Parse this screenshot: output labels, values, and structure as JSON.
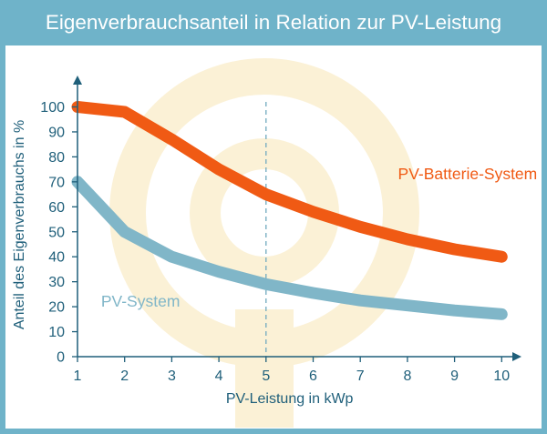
{
  "title": "Eigenverbrauchsanteil in Relation zur PV-Leistung",
  "colors": {
    "frame": "#6fb3c9",
    "title_text": "#ffffff",
    "axis": "#1f5f7a",
    "axis_text": "#1f5f7a",
    "watermark": "#fbf1d6",
    "series_battery": "#f05a14",
    "series_pv": "#80b6c8",
    "reference_line": "#6fa9bf"
  },
  "chart_data": {
    "type": "line",
    "xlabel": "PV-Leistung in kWp",
    "ylabel": "Anteil des Eigenverbrauchs in %",
    "x": [
      1,
      2,
      3,
      4,
      5,
      6,
      7,
      8,
      9,
      10
    ],
    "xlim": [
      1,
      10.4
    ],
    "ylim": [
      0,
      105
    ],
    "x_ticks": [
      1,
      2,
      3,
      4,
      5,
      6,
      7,
      8,
      9,
      10
    ],
    "y_ticks": [
      0,
      10,
      20,
      30,
      40,
      50,
      60,
      70,
      80,
      90,
      100
    ],
    "grid": false,
    "reference_line_x": 5,
    "series": [
      {
        "name": "PV-Batterie-System",
        "color": "#f05a14",
        "values": [
          100,
          98,
          87,
          75,
          65,
          58,
          52,
          47,
          43,
          40
        ],
        "label_at": [
          7.8,
          71
        ]
      },
      {
        "name": "PV-System",
        "color": "#80b6c8",
        "values": [
          70,
          50,
          40,
          34,
          29,
          25.5,
          22.5,
          20.5,
          18.5,
          17
        ],
        "label_at": [
          1.5,
          20
        ]
      }
    ]
  }
}
